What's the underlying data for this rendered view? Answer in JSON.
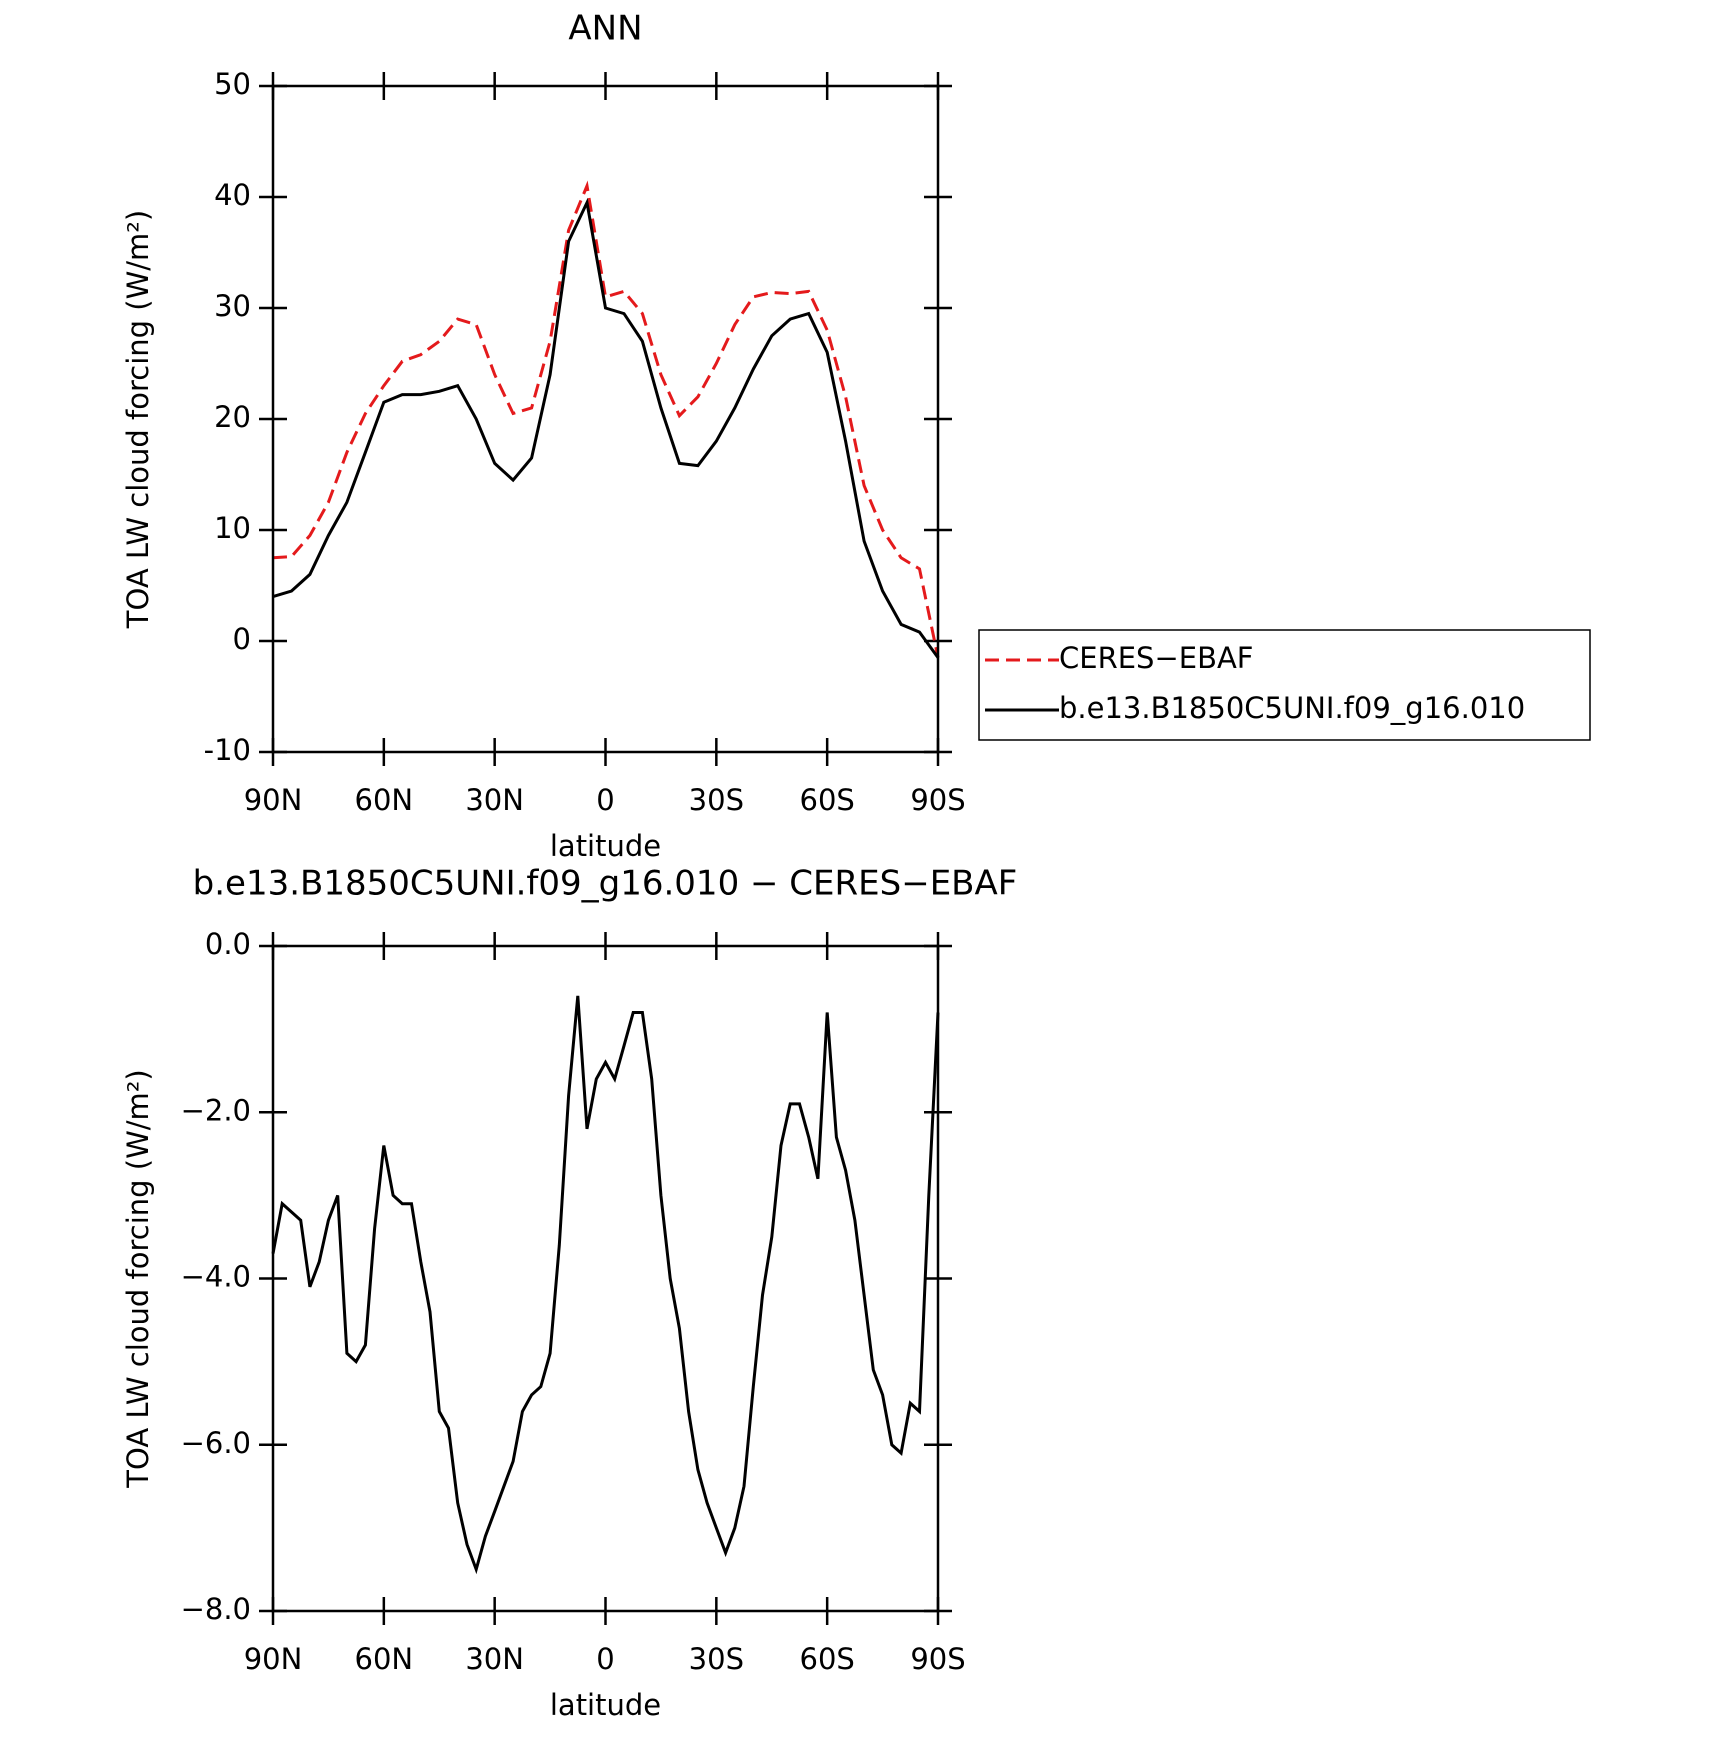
{
  "chart_data": [
    {
      "type": "line",
      "title": "ANN",
      "xlabel": "latitude",
      "ylabel": "TOA LW cloud forcing (W/m²)",
      "x": [
        90,
        85,
        80,
        75,
        70,
        65,
        60,
        55,
        50,
        45,
        40,
        35,
        30,
        25,
        20,
        15,
        10,
        5,
        0,
        -5,
        -10,
        -15,
        -20,
        -25,
        -30,
        -35,
        -40,
        -45,
        -50,
        -55,
        -60,
        -65,
        -70,
        -75,
        -80,
        -85,
        -90
      ],
      "series": [
        {
          "name": "CERES−EBAF",
          "color": "#e41a1c",
          "line_style": "dashed",
          "values": [
            7.5,
            7.6,
            9.5,
            12.5,
            17,
            20.5,
            23,
            25.2,
            25.8,
            27,
            29,
            28.5,
            24,
            20.5,
            21,
            27,
            37,
            41,
            31,
            31.5,
            29.5,
            24,
            20.3,
            22,
            25,
            28.5,
            31,
            31.4,
            31.3,
            31.5,
            28,
            22,
            14,
            10,
            7.5,
            6.5,
            -1.5
          ]
        },
        {
          "name": "b.e13.B1850C5UNI.f09_g16.010",
          "color": "#000000",
          "line_style": "solid",
          "values": [
            4,
            4.5,
            6,
            9.5,
            12.5,
            17,
            21.5,
            22.2,
            22.2,
            22.5,
            23,
            20,
            16,
            14.5,
            16.5,
            24,
            36,
            39.5,
            30,
            29.5,
            27,
            21,
            16,
            15.8,
            18,
            21,
            24.5,
            27.5,
            29,
            29.5,
            26,
            18,
            9,
            4.5,
            1.5,
            0.8,
            -1.5
          ]
        }
      ],
      "xlim": [
        90,
        -90
      ],
      "xticks": [
        {
          "value": 90,
          "label": "90N"
        },
        {
          "value": 60,
          "label": "60N"
        },
        {
          "value": 30,
          "label": "30N"
        },
        0,
        {
          "value": -30,
          "label": "30S"
        },
        {
          "value": -60,
          "label": "60S"
        },
        {
          "value": -90,
          "label": "90S"
        }
      ],
      "ylim": [
        -10,
        50
      ],
      "yticks": [
        -10,
        0,
        10,
        20,
        30,
        40,
        50
      ],
      "legend": "outside right"
    },
    {
      "type": "line",
      "title": "b.e13.B1850C5UNI.f09_g16.010 − CERES−EBAF",
      "xlabel": "latitude",
      "ylabel": "TOA LW cloud forcing (W/m²)",
      "x": [
        90,
        87.5,
        85,
        82.5,
        80,
        77.5,
        75,
        72.5,
        70,
        67.5,
        65,
        62.5,
        60,
        57.5,
        55,
        52.5,
        50,
        47.5,
        45,
        42.5,
        40,
        37.5,
        35,
        32.5,
        30,
        27.5,
        25,
        22.5,
        20,
        17.5,
        15,
        12.5,
        10,
        7.5,
        5,
        2.5,
        0,
        -2.5,
        -5,
        -7.5,
        -10,
        -12.5,
        -15,
        -17.5,
        -20,
        -22.5,
        -25,
        -27.5,
        -30,
        -32.5,
        -35,
        -37.5,
        -40,
        -42.5,
        -45,
        -47.5,
        -50,
        -52.5,
        -55,
        -57.5,
        -60,
        -62.5,
        -65,
        -67.5,
        -70,
        -72.5,
        -75,
        -77.5,
        -80,
        -82.5,
        -85,
        -87.5,
        -90
      ],
      "series": [
        {
          "name": "b.e13.B1850C5UNI.f09_g16.010 − CERES−EBAF",
          "color": "#000000",
          "line_style": "solid",
          "values": [
            -3.7,
            -3.1,
            -3.2,
            -3.3,
            -4.1,
            -3.8,
            -3.3,
            -3.0,
            -4.9,
            -5.0,
            -4.8,
            -3.4,
            -2.4,
            -3.0,
            -3.1,
            -3.1,
            -3.8,
            -4.4,
            -5.6,
            -5.8,
            -6.7,
            -7.2,
            -7.5,
            -7.1,
            -6.8,
            -6.5,
            -6.2,
            -5.6,
            -5.4,
            -5.3,
            -4.9,
            -3.6,
            -1.8,
            -0.6,
            -2.2,
            -1.6,
            -1.4,
            -1.6,
            -1.2,
            -0.8,
            -0.8,
            -1.6,
            -3.0,
            -4.0,
            -4.6,
            -5.6,
            -6.3,
            -6.7,
            -7.0,
            -7.3,
            -7.0,
            -6.5,
            -5.3,
            -4.2,
            -3.5,
            -2.4,
            -1.9,
            -1.9,
            -2.3,
            -2.8,
            -0.8,
            -2.3,
            -2.7,
            -3.3,
            -4.2,
            -5.1,
            -5.4,
            -6.0,
            -6.1,
            -5.5,
            -5.6,
            -3.0,
            -0.8
          ]
        }
      ],
      "xlim": [
        90,
        -90
      ],
      "xticks": [
        {
          "value": 90,
          "label": "90N"
        },
        {
          "value": 60,
          "label": "60N"
        },
        {
          "value": 30,
          "label": "30N"
        },
        0,
        {
          "value": -30,
          "label": "30S"
        },
        {
          "value": -60,
          "label": "60S"
        },
        {
          "value": -90,
          "label": "90S"
        }
      ],
      "ylim": [
        -8,
        0
      ],
      "yticks": [
        {
          "value": -8,
          "label": "−8.0"
        },
        {
          "value": -6,
          "label": "−6.0"
        },
        {
          "value": -4,
          "label": "−4.0"
        },
        {
          "value": -2,
          "label": "−2.0"
        },
        {
          "value": 0,
          "label": "0.0"
        }
      ]
    }
  ]
}
